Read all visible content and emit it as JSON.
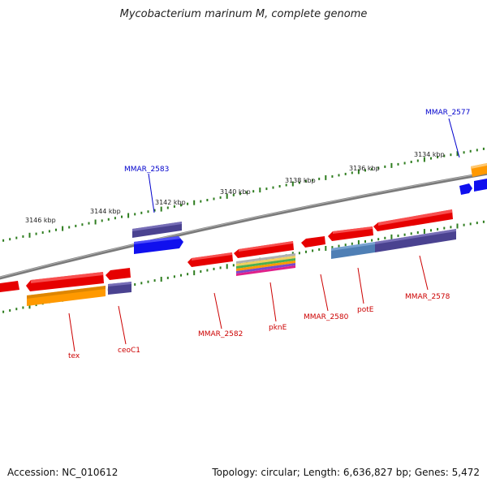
{
  "title": "Mycobacterium marinum M, complete genome",
  "footer": {
    "accession": "Accession: NC_010612",
    "summary": "Topology: circular; Length: 6,636,827 bp; Genes: 5,472"
  },
  "colors": {
    "backbone": "#808080",
    "ticks": "#2e7d1f",
    "red_feature": "#e60000",
    "blue_feature": "#1010ee",
    "navy_feature": "#4a4290",
    "orange_feature": "#ff9900",
    "steel_feature": "#4f7fb5",
    "red_label": "#cc0000",
    "blue_label": "#0000cc"
  },
  "ticks": {
    "kbp_labels": [
      "3134 kbp",
      "3136 kbp",
      "3138 kbp",
      "3140 kbp",
      "3142 kbp",
      "3144 kbp",
      "3146 kbp"
    ]
  },
  "gene_labels": {
    "top": [
      "MMAR_2583",
      "MMAR_2577"
    ],
    "bottom": [
      "tex",
      "ceoC1",
      "MMAR_2582",
      "pknE",
      "MMAR_2580",
      "potE",
      "MMAR_2578"
    ]
  }
}
